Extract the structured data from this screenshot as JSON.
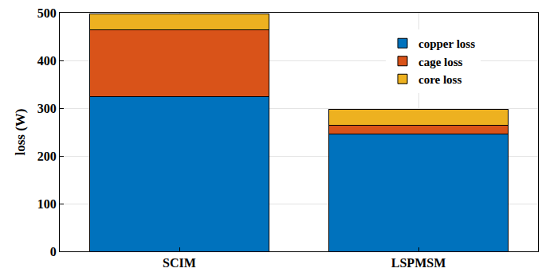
{
  "chart_data": {
    "type": "bar",
    "stacked": true,
    "categories": [
      "SCIM",
      "LSPMSM"
    ],
    "series": [
      {
        "name": "copper loss",
        "color": "#0072BD",
        "values": [
          325,
          246
        ]
      },
      {
        "name": "cage loss",
        "color": "#D95319",
        "values": [
          140,
          18
        ]
      },
      {
        "name": "core loss",
        "color": "#EDB120",
        "values": [
          33,
          33
        ]
      }
    ],
    "y_label": "loss (W)",
    "ylim": [
      0,
      500
    ],
    "yticks": [
      0,
      100,
      200,
      300,
      400,
      500
    ],
    "grid": true,
    "legend": "upper right"
  }
}
